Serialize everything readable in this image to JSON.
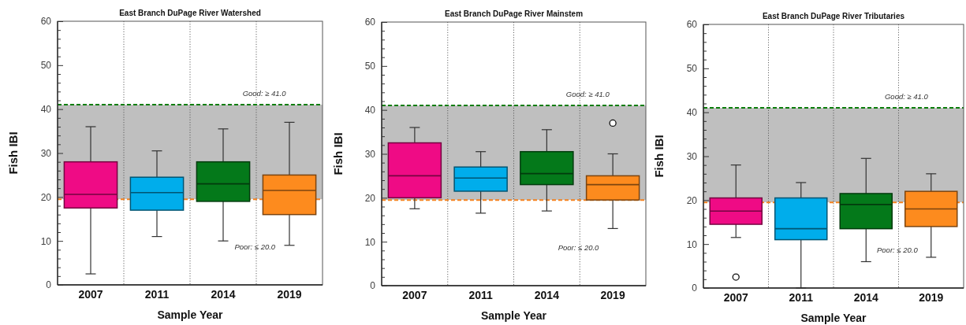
{
  "chart_data": [
    {
      "type": "box",
      "title": "East Branch DuPage River Watershed",
      "xlabel": "Sample Year",
      "ylabel": "Fish IBI",
      "categories": [
        "2007",
        "2011",
        "2014",
        "2019"
      ],
      "boxes": [
        {
          "low": 2.5,
          "q1": 17.5,
          "median": 20.6,
          "q3": 28,
          "high": 36
        },
        {
          "low": 11,
          "q1": 17,
          "median": 21,
          "q3": 24.5,
          "high": 30.5
        },
        {
          "low": 10,
          "q1": 19,
          "median": 23,
          "q3": 28,
          "high": 35.5
        },
        {
          "low": 9,
          "q1": 16,
          "median": 21.5,
          "q3": 25,
          "high": 37
        }
      ],
      "colors": [
        "#ef0b85",
        "#00adeb",
        "#04791a",
        "#fd8b1e"
      ],
      "ylim": [
        0,
        60
      ],
      "yticks": [
        0,
        {
          "value": 2,
          "label": null
        },
        {
          "value": 4,
          "label": null
        },
        {
          "value": 6,
          "label": null
        },
        {
          "value": 8,
          "label": null
        },
        10,
        {
          "value": 12,
          "label": null
        },
        {
          "value": 14,
          "label": null
        },
        {
          "value": 16,
          "label": null
        },
        {
          "value": 18,
          "label": null
        },
        20,
        {
          "value": 22,
          "label": null
        },
        {
          "value": 24,
          "label": null
        },
        {
          "value": 26,
          "label": null
        },
        {
          "value": 28,
          "label": null
        },
        30,
        {
          "value": 32,
          "label": null
        },
        {
          "value": 34,
          "label": null
        },
        {
          "value": 36,
          "label": null
        },
        {
          "value": 38,
          "label": null
        },
        40,
        {
          "value": 42,
          "label": null
        },
        {
          "value": 44,
          "label": null
        },
        {
          "value": 46,
          "label": null
        },
        {
          "value": 48,
          "label": null
        },
        50,
        {
          "value": 52,
          "label": null
        },
        {
          "value": 54,
          "label": null
        },
        {
          "value": 56,
          "label": null
        },
        {
          "value": 58,
          "label": null
        },
        60
      ],
      "grid": "x",
      "bands": [
        {
          "axis": "y",
          "from": 19.5,
          "to": 41,
          "color": "#bfbfbf"
        }
      ],
      "ref_lines": [
        {
          "axis": "y",
          "value": 41,
          "label": "Good: ≥ 41.0",
          "color": "#0a7d0a",
          "line_style": "dashed"
        },
        {
          "axis": "y",
          "value": 19.5,
          "color": "#f5821f",
          "line_style": "dashed"
        }
      ],
      "annotations": [
        "Poor: ≤ 20.0"
      ]
    },
    {
      "type": "box",
      "title": "East Branch DuPage River Mainstem",
      "xlabel": "Sample Year",
      "ylabel": "Fish IBI",
      "categories": [
        "2007",
        "2011",
        "2014",
        "2019"
      ],
      "boxes": [
        {
          "low": 17.5,
          "q1": 20,
          "median": 25,
          "q3": 32.5,
          "high": 36
        },
        {
          "low": 16.5,
          "q1": 21.5,
          "median": 24.5,
          "q3": 27,
          "high": 30.5
        },
        {
          "low": 17,
          "q1": 23,
          "median": 25.5,
          "q3": 30.5,
          "high": 35.5
        },
        {
          "low": 13,
          "q1": 19.5,
          "median": 23,
          "q3": 25,
          "high": 30,
          "outliers": [
            37
          ]
        }
      ],
      "colors": [
        "#ef0b85",
        "#00adeb",
        "#04791a",
        "#fd8b1e"
      ],
      "ylim": [
        0,
        60
      ],
      "yticks": [
        0,
        {
          "value": 2,
          "label": null
        },
        {
          "value": 4,
          "label": null
        },
        {
          "value": 6,
          "label": null
        },
        {
          "value": 8,
          "label": null
        },
        10,
        {
          "value": 12,
          "label": null
        },
        {
          "value": 14,
          "label": null
        },
        {
          "value": 16,
          "label": null
        },
        {
          "value": 18,
          "label": null
        },
        20,
        {
          "value": 22,
          "label": null
        },
        {
          "value": 24,
          "label": null
        },
        {
          "value": 26,
          "label": null
        },
        {
          "value": 28,
          "label": null
        },
        30,
        {
          "value": 32,
          "label": null
        },
        {
          "value": 34,
          "label": null
        },
        {
          "value": 36,
          "label": null
        },
        {
          "value": 38,
          "label": null
        },
        40,
        {
          "value": 42,
          "label": null
        },
        {
          "value": 44,
          "label": null
        },
        {
          "value": 46,
          "label": null
        },
        {
          "value": 48,
          "label": null
        },
        50,
        {
          "value": 52,
          "label": null
        },
        {
          "value": 54,
          "label": null
        },
        {
          "value": 56,
          "label": null
        },
        {
          "value": 58,
          "label": null
        },
        60
      ],
      "grid": "x",
      "bands": [
        {
          "axis": "y",
          "from": 19.5,
          "to": 41,
          "color": "#bfbfbf"
        }
      ],
      "ref_lines": [
        {
          "axis": "y",
          "value": 41,
          "label": "Good: ≥ 41.0",
          "color": "#0a7d0a",
          "line_style": "dashed"
        },
        {
          "axis": "y",
          "value": 19.5,
          "color": "#f5821f",
          "line_style": "dashed"
        }
      ],
      "annotations": [
        "Poor: ≤ 20.0"
      ]
    },
    {
      "type": "box",
      "title": "East Branch DuPage River Tributaries",
      "xlabel": "Sample Year",
      "ylabel": "Fish IBI",
      "categories": [
        "2007",
        "2011",
        "2014",
        "2019"
      ],
      "boxes": [
        {
          "low": 11.5,
          "q1": 14.5,
          "median": 17.5,
          "q3": 20.5,
          "high": 28,
          "outliers": [
            2.5
          ]
        },
        {
          "low": 0,
          "q1": 11,
          "median": 13.5,
          "q3": 20.5,
          "high": 24
        },
        {
          "low": 6,
          "q1": 13.5,
          "median": 19,
          "q3": 21.5,
          "high": 29.5
        },
        {
          "low": 7,
          "q1": 14,
          "median": 18,
          "q3": 22,
          "high": 26
        }
      ],
      "colors": [
        "#ef0b85",
        "#00adeb",
        "#04791a",
        "#fd8b1e"
      ],
      "ylim": [
        0,
        60
      ],
      "yticks": [
        0,
        {
          "value": 2,
          "label": null
        },
        {
          "value": 4,
          "label": null
        },
        {
          "value": 6,
          "label": null
        },
        {
          "value": 8,
          "label": null
        },
        10,
        {
          "value": 12,
          "label": null
        },
        {
          "value": 14,
          "label": null
        },
        {
          "value": 16,
          "label": null
        },
        {
          "value": 18,
          "label": null
        },
        20,
        {
          "value": 22,
          "label": null
        },
        {
          "value": 24,
          "label": null
        },
        {
          "value": 26,
          "label": null
        },
        {
          "value": 28,
          "label": null
        },
        30,
        {
          "value": 32,
          "label": null
        },
        {
          "value": 34,
          "label": null
        },
        {
          "value": 36,
          "label": null
        },
        {
          "value": 38,
          "label": null
        },
        40,
        {
          "value": 42,
          "label": null
        },
        {
          "value": 44,
          "label": null
        },
        {
          "value": 46,
          "label": null
        },
        {
          "value": 48,
          "label": null
        },
        50,
        {
          "value": 52,
          "label": null
        },
        {
          "value": 54,
          "label": null
        },
        {
          "value": 56,
          "label": null
        },
        {
          "value": 58,
          "label": null
        },
        60
      ],
      "grid": "x",
      "bands": [
        {
          "axis": "y",
          "from": 19.5,
          "to": 41,
          "color": "#bfbfbf"
        }
      ],
      "ref_lines": [
        {
          "axis": "y",
          "value": 41,
          "label": "Good: ≥ 41.0",
          "color": "#0a7d0a",
          "line_style": "dashed"
        },
        {
          "axis": "y",
          "value": 19.5,
          "color": "#f5821f",
          "line_style": "dashed"
        }
      ],
      "annotations": [
        "Poor: ≤ 20.0"
      ]
    }
  ]
}
